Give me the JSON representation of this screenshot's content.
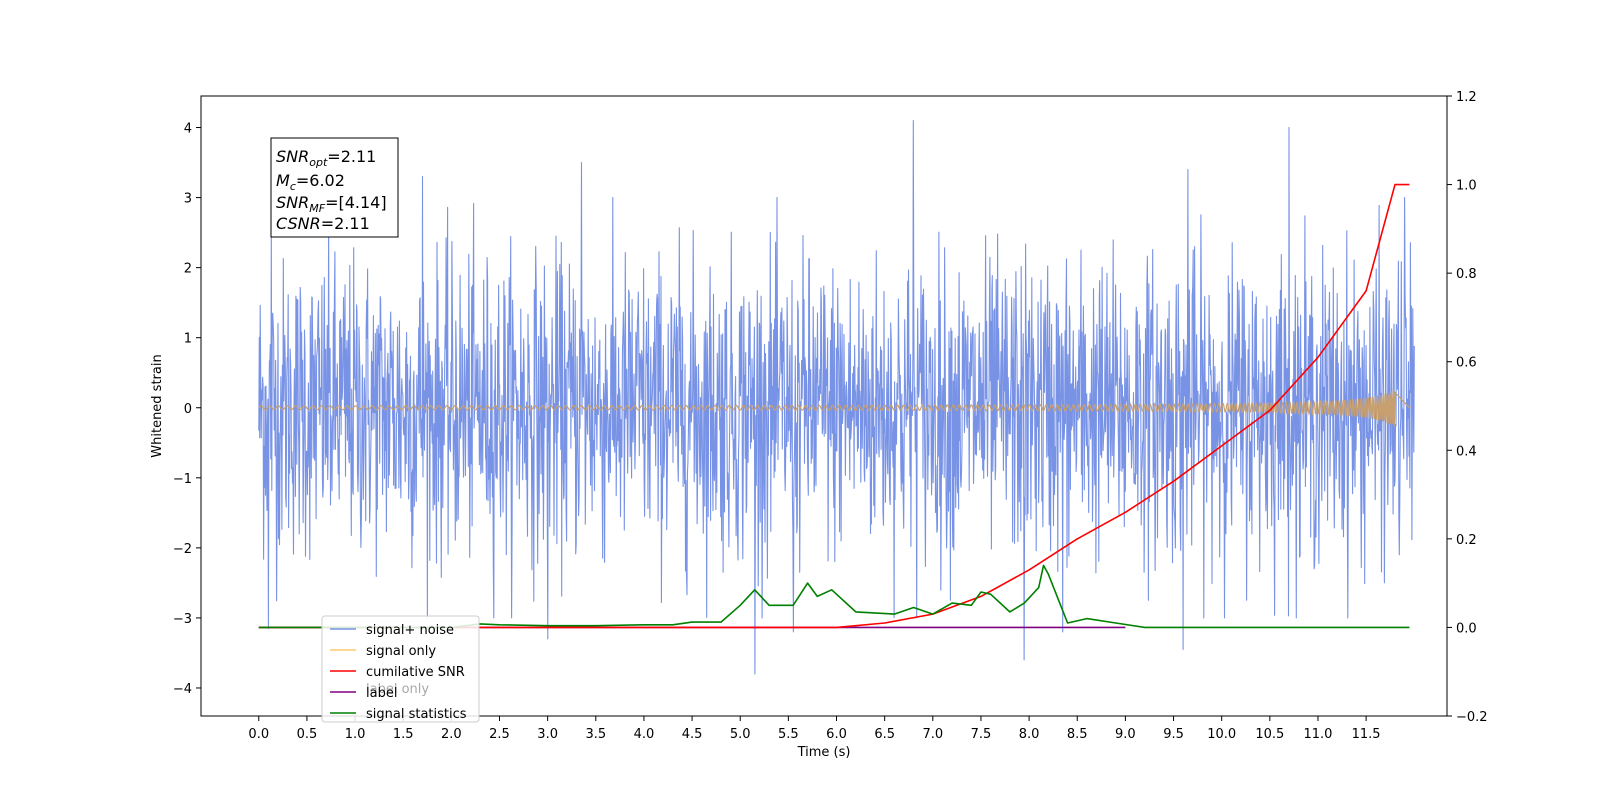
{
  "chart_data": {
    "type": "line",
    "xlabel": "Time (s)",
    "ylabel": "Whitened strain",
    "xlim": [
      -0.6,
      12.34
    ],
    "ylim": [
      -4.4,
      4.45
    ],
    "y2lim": [
      -0.2,
      1.2
    ],
    "x_ticks": [
      "0.0",
      "0.5",
      "1.0",
      "1.5",
      "2.0",
      "2.5",
      "3.0",
      "3.5",
      "4.0",
      "4.5",
      "5.0",
      "5.5",
      "6.0",
      "6.5",
      "7.0",
      "7.5",
      "8.0",
      "8.5",
      "9.0",
      "9.5",
      "10.0",
      "10.5",
      "11.0",
      "11.5"
    ],
    "y_ticks": [
      "4",
      "3",
      "2",
      "1",
      "0",
      "−1",
      "−2",
      "−3",
      "−4"
    ],
    "y2_ticks": [
      "1.2",
      "1.0",
      "0.8",
      "0.6",
      "0.4",
      "0.2",
      "0.0",
      "−0.2"
    ],
    "grid": false,
    "legend_position": "lower-left",
    "annotation": {
      "snr_opt": {
        "name": "SNR",
        "sub": "opt",
        "value": "=2.11"
      },
      "mc": {
        "name": "M",
        "sub": "c",
        "value": "=6.02"
      },
      "snr_mf": {
        "name": "SNR",
        "sub": "MF",
        "value": "=[4.14]"
      },
      "csnr": {
        "name": "CSNR",
        "value": "=2.11"
      }
    },
    "series": [
      {
        "name": "signal+ noise",
        "axis": "left",
        "color": "#7893e6",
        "description_values": {
          "x_start": 0.0,
          "x_end": 12.0,
          "approx_range": [
            -3.8,
            4.1
          ]
        },
        "peaks": [
          [
            0.13,
            2.55
          ],
          [
            1.7,
            3.3
          ],
          [
            3.35,
            3.5
          ],
          [
            6.8,
            4.1
          ],
          [
            9.65,
            3.4
          ],
          [
            10.7,
            4.0
          ],
          [
            11.9,
            3.0
          ]
        ],
        "troughs": [
          [
            0.1,
            -3.15
          ],
          [
            3.0,
            -3.3
          ],
          [
            5.15,
            -3.8
          ],
          [
            7.95,
            -3.6
          ],
          [
            9.6,
            -3.45
          ],
          [
            5.55,
            -3.2
          ],
          [
            8.35,
            -3.2
          ]
        ]
      },
      {
        "name": "signal only",
        "axis": "left",
        "color": "#ffc86e",
        "values_desc": "near zero, growing chirp amplitude to about ±0.3 at 11.8 s"
      },
      {
        "name": "cumilative SNR",
        "axis": "right",
        "color": "#ff0000",
        "x": [
          0.0,
          6.0,
          6.5,
          7.0,
          7.5,
          8.0,
          8.5,
          9.0,
          9.5,
          10.0,
          10.5,
          11.0,
          11.5,
          11.8,
          11.95
        ],
        "values": [
          0.0,
          0.0,
          0.01,
          0.03,
          0.07,
          0.13,
          0.2,
          0.26,
          0.33,
          0.41,
          0.49,
          0.61,
          0.76,
          1.0,
          1.0
        ]
      },
      {
        "name": "label",
        "axis": "right",
        "color": "#800080",
        "x": [
          0.0,
          9.0
        ],
        "values": [
          0.0,
          0.0
        ]
      },
      {
        "name": "signal statistics",
        "axis": "right",
        "color": "#008000",
        "x": [
          0.0,
          2.0,
          2.3,
          2.5,
          3.0,
          3.5,
          4.0,
          4.3,
          4.5,
          4.8,
          5.0,
          5.15,
          5.3,
          5.55,
          5.7,
          5.8,
          5.95,
          6.2,
          6.6,
          6.8,
          7.0,
          7.2,
          7.4,
          7.5,
          7.6,
          7.8,
          7.95,
          8.1,
          8.15,
          8.2,
          8.4,
          8.6,
          8.9,
          9.2,
          11.95
        ],
        "values": [
          0.0,
          0.0,
          0.008,
          0.006,
          0.004,
          0.004,
          0.006,
          0.006,
          0.012,
          0.012,
          0.05,
          0.085,
          0.05,
          0.05,
          0.1,
          0.07,
          0.085,
          0.035,
          0.03,
          0.045,
          0.03,
          0.055,
          0.05,
          0.08,
          0.075,
          0.035,
          0.055,
          0.09,
          0.14,
          0.12,
          0.01,
          0.02,
          0.01,
          0.0,
          0.0
        ]
      }
    ],
    "legend": [
      {
        "label": "signal+ noise",
        "color": "#7893e6"
      },
      {
        "label": "signal only",
        "color": "#ffc86e"
      },
      {
        "label": "cumilative SNR",
        "color": "#ff0000"
      },
      {
        "label": "label",
        "color": "#800080"
      },
      {
        "label": "signal statistics",
        "color": "#008000"
      }
    ],
    "legend_hidden_text": "label only"
  }
}
